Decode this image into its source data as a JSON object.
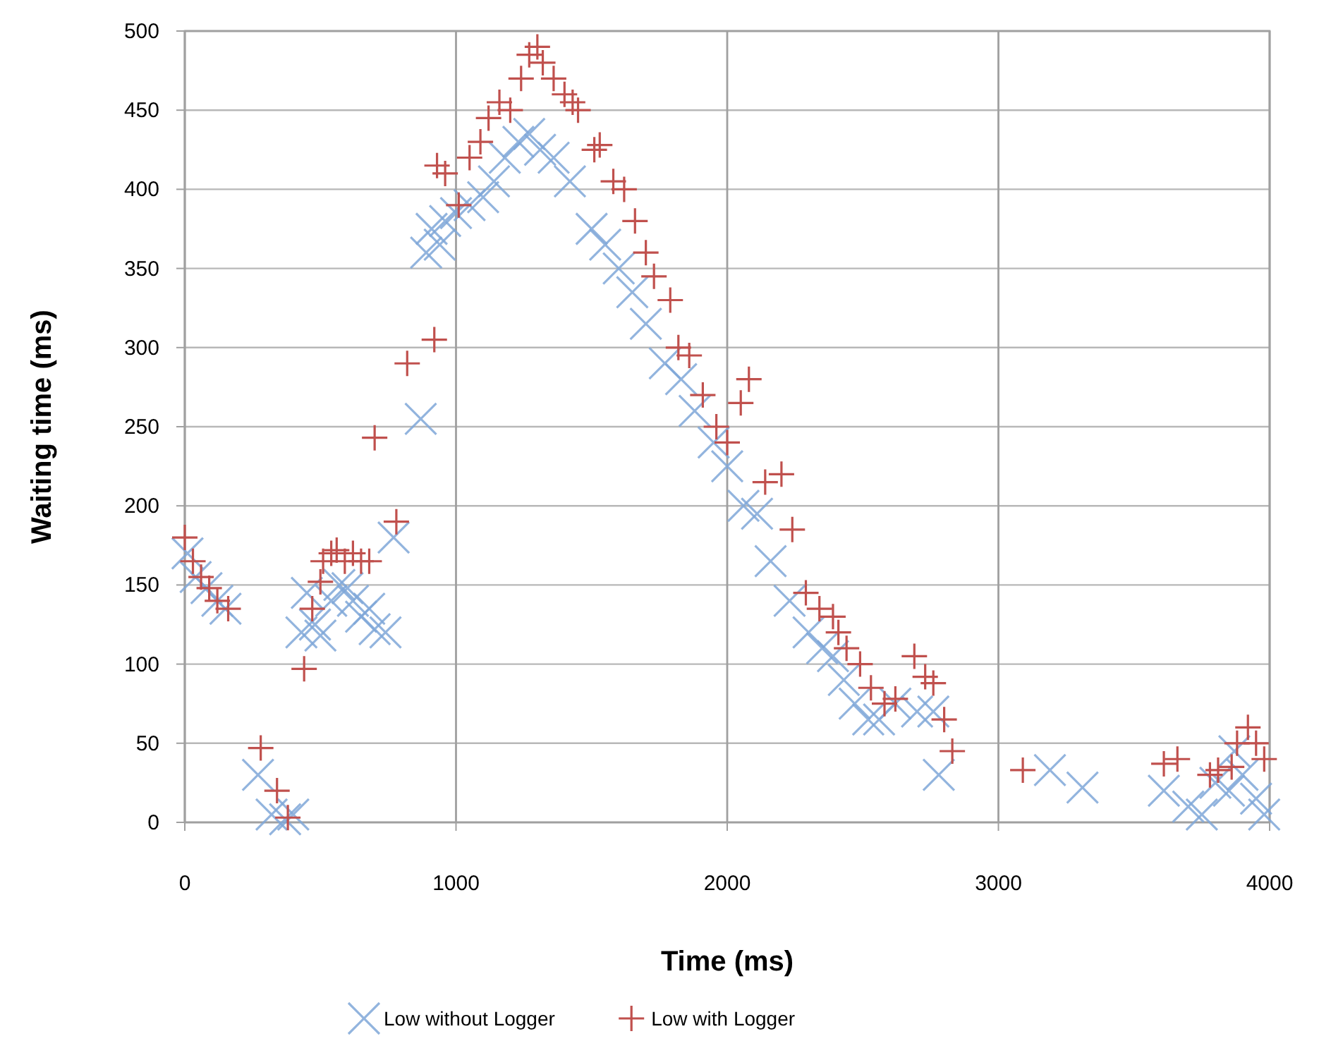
{
  "chart_data": {
    "type": "scatter",
    "xlabel": "Time (ms)",
    "ylabel": "Waiting time (ms)",
    "xlim": [
      0,
      4000
    ],
    "xticks": [
      0,
      1000,
      2000,
      3000,
      4000
    ],
    "ylim": [
      0,
      500
    ],
    "yticks": [
      0,
      50,
      100,
      150,
      200,
      250,
      300,
      350,
      400,
      450,
      500
    ],
    "grid": true,
    "legend": "bottom",
    "series": [
      {
        "name": "Low without Logger",
        "color": "#7fa7d8",
        "marker": "x",
        "x": [
          10,
          40,
          80,
          120,
          150,
          270,
          320,
          370,
          400,
          430,
          450,
          480,
          500,
          540,
          570,
          600,
          620,
          650,
          680,
          700,
          740,
          770,
          870,
          890,
          910,
          940,
          960,
          1000,
          1050,
          1100,
          1140,
          1180,
          1230,
          1270,
          1310,
          1360,
          1420,
          1500,
          1550,
          1600,
          1650,
          1700,
          1770,
          1830,
          1880,
          1950,
          2000,
          2060,
          2110,
          2160,
          2230,
          2300,
          2350,
          2390,
          2430,
          2470,
          2520,
          2560,
          2620,
          2700,
          2760,
          2780,
          3190,
          3310,
          3610,
          3700,
          3750,
          3800,
          3850,
          3870,
          3900,
          3950,
          3980
        ],
        "values": [
          170,
          155,
          148,
          140,
          135,
          30,
          5,
          2,
          5,
          120,
          145,
          125,
          118,
          140,
          150,
          148,
          140,
          130,
          135,
          122,
          120,
          180,
          255,
          360,
          375,
          365,
          380,
          385,
          390,
          395,
          405,
          420,
          430,
          435,
          425,
          420,
          405,
          375,
          365,
          350,
          335,
          315,
          290,
          280,
          260,
          240,
          225,
          200,
          195,
          165,
          140,
          120,
          110,
          105,
          90,
          75,
          65,
          65,
          75,
          70,
          70,
          30,
          33,
          22,
          20,
          10,
          5,
          25,
          20,
          45,
          30,
          15,
          5
        ]
      },
      {
        "name": "Low with Logger",
        "color": "#c0504d",
        "marker": "cross",
        "x": [
          0,
          30,
          60,
          90,
          120,
          160,
          280,
          340,
          380,
          440,
          470,
          500,
          510,
          540,
          560,
          590,
          620,
          650,
          680,
          700,
          780,
          820,
          920,
          930,
          960,
          1010,
          1050,
          1090,
          1120,
          1160,
          1200,
          1240,
          1270,
          1300,
          1320,
          1360,
          1400,
          1430,
          1450,
          1510,
          1530,
          1580,
          1620,
          1660,
          1700,
          1730,
          1790,
          1820,
          1860,
          1910,
          1960,
          2000,
          2050,
          2080,
          2140,
          2200,
          2240,
          2290,
          2340,
          2390,
          2410,
          2440,
          2490,
          2530,
          2580,
          2620,
          2690,
          2730,
          2760,
          2800,
          2830,
          3090,
          3610,
          3660,
          3780,
          3810,
          3860,
          3880,
          3920,
          3950,
          3980
        ],
        "values": [
          180,
          165,
          155,
          148,
          140,
          135,
          47,
          20,
          3,
          97,
          135,
          152,
          165,
          170,
          172,
          165,
          170,
          165,
          165,
          243,
          190,
          290,
          305,
          415,
          410,
          390,
          420,
          430,
          445,
          455,
          450,
          470,
          485,
          490,
          480,
          470,
          460,
          455,
          450,
          425,
          428,
          405,
          400,
          380,
          360,
          345,
          330,
          300,
          295,
          270,
          250,
          240,
          265,
          280,
          215,
          220,
          185,
          145,
          135,
          130,
          120,
          110,
          100,
          85,
          75,
          78,
          105,
          92,
          88,
          65,
          45,
          33,
          37,
          40,
          30,
          33,
          35,
          50,
          60,
          50,
          40
        ]
      }
    ]
  }
}
